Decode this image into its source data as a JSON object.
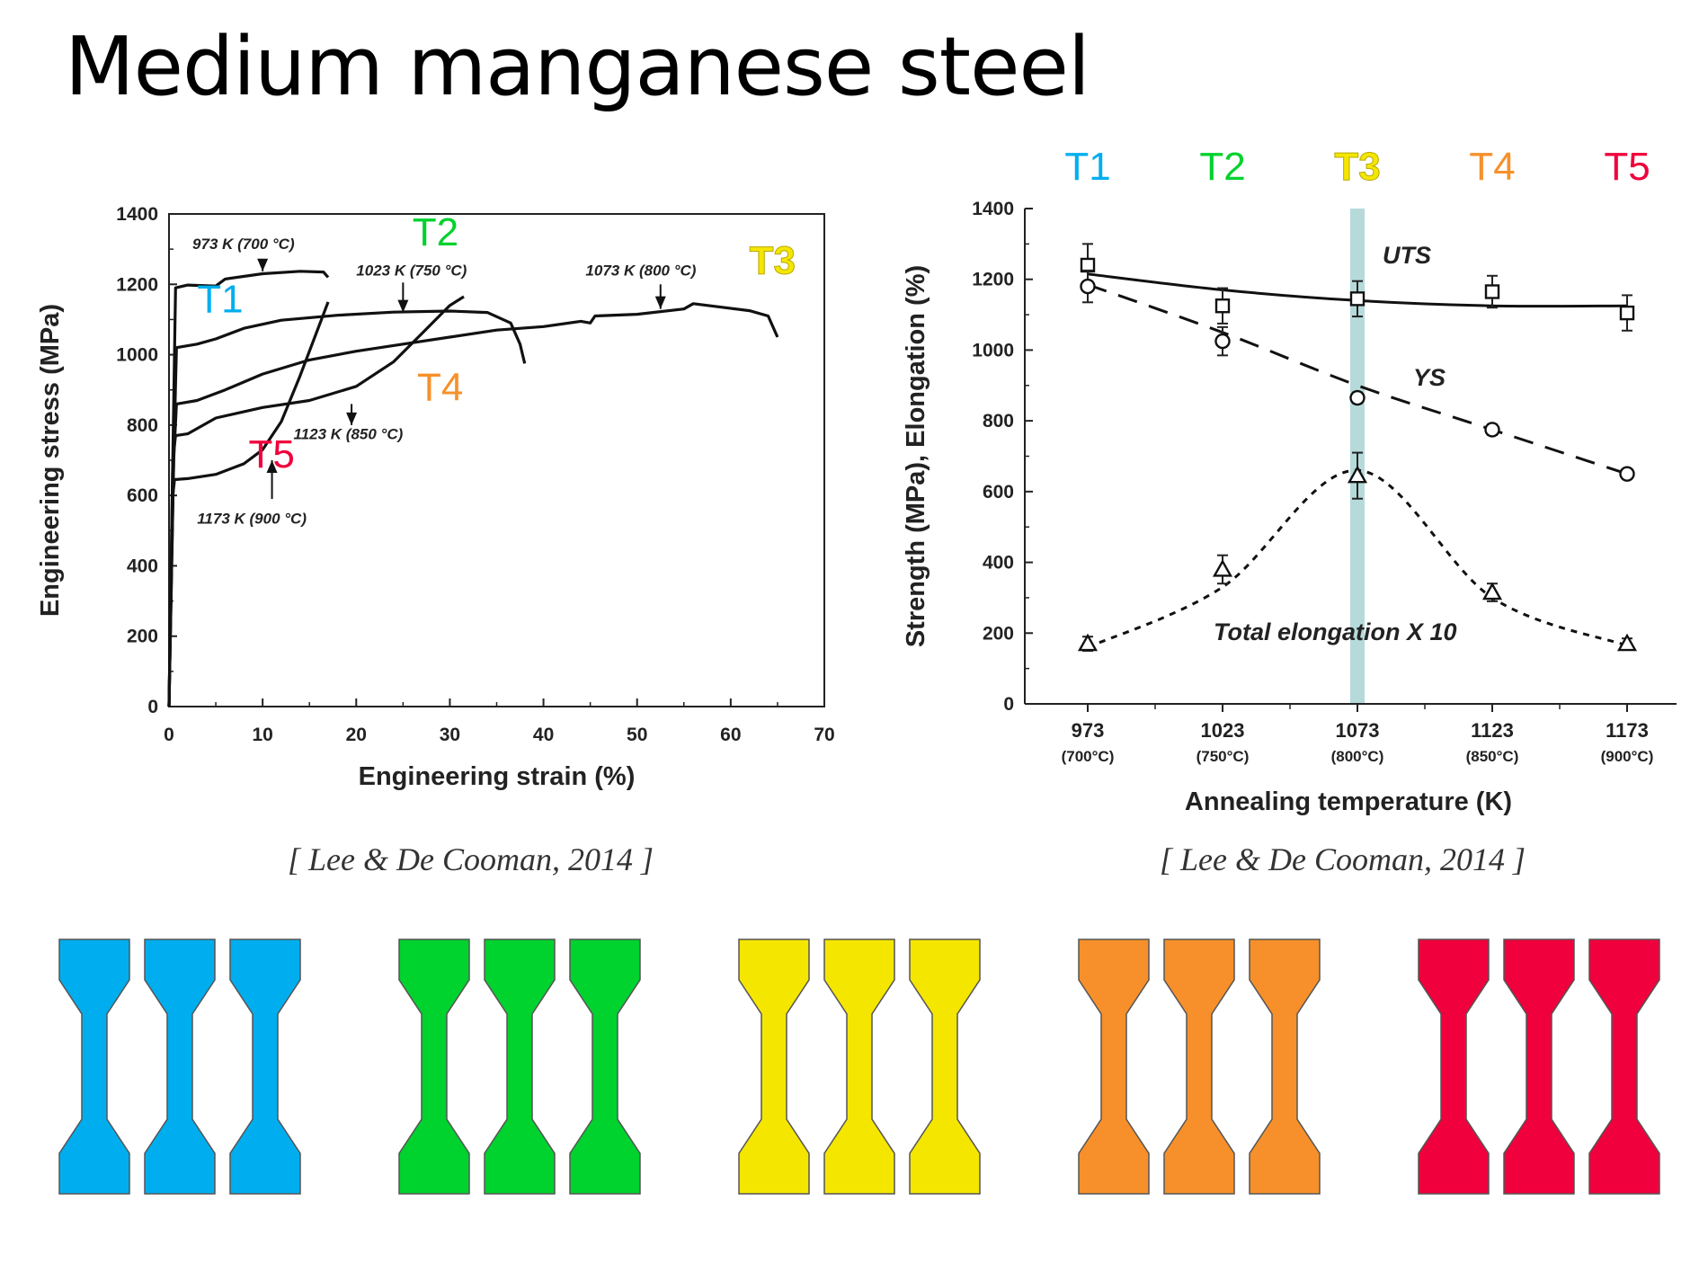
{
  "slide": {
    "title": "Medium manganese steel",
    "citation_left": "[ Lee & De Cooman, 2014 ]",
    "citation_right": "[ Lee & De Cooman, 2014 ]"
  },
  "colors": {
    "T1": "#00AEEF",
    "T2": "#00D22E",
    "T3": "#F5E600",
    "T4": "#F7902A",
    "T5": "#F0003C",
    "highlight": "#A9D3D3"
  },
  "chart_data": [
    {
      "type": "line",
      "xlabel": "Engineering strain (%)",
      "ylabel": "Engineering stress (MPa)",
      "xlim": [
        0,
        70
      ],
      "ylim": [
        0,
        1400
      ],
      "xticks": [
        0,
        10,
        20,
        30,
        40,
        50,
        60,
        70
      ],
      "yticks": [
        0,
        200,
        400,
        600,
        800,
        1000,
        1200,
        1400
      ],
      "series": [
        {
          "name": "973 K (700 °C)",
          "tag": "T1",
          "points": [
            [
              0,
              0
            ],
            [
              0.4,
              700
            ],
            [
              0.7,
              1190
            ],
            [
              2,
              1198
            ],
            [
              5,
              1195
            ],
            [
              6,
              1215
            ],
            [
              10,
              1230
            ],
            [
              14,
              1237
            ],
            [
              16.5,
              1235
            ],
            [
              17,
              1220
            ]
          ]
        },
        {
          "name": "1023 K (750 °C)",
          "tag": "T2",
          "points": [
            [
              0,
              0
            ],
            [
              0.5,
              700
            ],
            [
              0.8,
              1020
            ],
            [
              3,
              1030
            ],
            [
              5,
              1045
            ],
            [
              8,
              1075
            ],
            [
              12,
              1098
            ],
            [
              18,
              1112
            ],
            [
              24,
              1121
            ],
            [
              30,
              1124
            ],
            [
              34,
              1120
            ],
            [
              36.5,
              1090
            ],
            [
              37.5,
              1030
            ],
            [
              38,
              975
            ]
          ]
        },
        {
          "name": "1073 K (800 °C)",
          "tag": "T3",
          "points": [
            [
              0,
              0
            ],
            [
              0.5,
              700
            ],
            [
              0.8,
              860
            ],
            [
              3,
              870
            ],
            [
              6,
              900
            ],
            [
              10,
              945
            ],
            [
              15,
              985
            ],
            [
              20,
              1010
            ],
            [
              25,
              1030
            ],
            [
              30,
              1050
            ],
            [
              35,
              1070
            ],
            [
              40,
              1080
            ],
            [
              44,
              1095
            ],
            [
              45,
              1090
            ],
            [
              45.5,
              1110
            ],
            [
              50,
              1115
            ],
            [
              55,
              1130
            ],
            [
              56,
              1145
            ],
            [
              59,
              1135
            ],
            [
              62,
              1125
            ],
            [
              64,
              1110
            ],
            [
              65,
              1050
            ]
          ]
        },
        {
          "name": "1123 K (850 °C)",
          "tag": "T4",
          "points": [
            [
              0,
              0
            ],
            [
              0.4,
              700
            ],
            [
              0.7,
              770
            ],
            [
              2,
              775
            ],
            [
              5,
              820
            ],
            [
              10,
              850
            ],
            [
              15,
              870
            ],
            [
              20,
              910
            ],
            [
              24,
              980
            ],
            [
              27,
              1060
            ],
            [
              30,
              1140
            ],
            [
              31.5,
              1165
            ]
          ]
        },
        {
          "name": "1173 K (900 °C)",
          "tag": "T5",
          "points": [
            [
              0,
              0
            ],
            [
              0.4,
              600
            ],
            [
              0.6,
              645
            ],
            [
              2,
              648
            ],
            [
              5,
              660
            ],
            [
              8,
              690
            ],
            [
              10,
              730
            ],
            [
              12,
              810
            ],
            [
              14,
              940
            ],
            [
              16,
              1080
            ],
            [
              17,
              1150
            ]
          ]
        }
      ],
      "annotations": [
        {
          "text": "973 K (700 °C)",
          "x": 2.5,
          "y": 1300
        },
        {
          "text": "1023 K (750 °C)",
          "x": 20,
          "y": 1225
        },
        {
          "text": "1073 K (800 °C)",
          "x": 44.5,
          "y": 1225
        },
        {
          "text": "1123 K (850 °C)",
          "x": 13.3,
          "y": 760
        },
        {
          "text": "1173 K (900 °C)",
          "x": 3,
          "y": 520
        }
      ],
      "arrows": [
        {
          "from": [
            10,
            1250
          ],
          "to": [
            10,
            1237
          ]
        },
        {
          "from": [
            25,
            1205
          ],
          "to": [
            25,
            1120
          ]
        },
        {
          "from": [
            52.5,
            1200
          ],
          "to": [
            52.5,
            1130
          ]
        },
        {
          "from": [
            19.5,
            860
          ],
          "to": [
            19.5,
            800
          ]
        },
        {
          "from": [
            11,
            590
          ],
          "to": [
            11,
            700
          ]
        }
      ],
      "tags": [
        {
          "label": "T1",
          "x": 3,
          "y": 1120
        },
        {
          "label": "T2",
          "x": 26,
          "y": 1310
        },
        {
          "label": "T3",
          "x": 62,
          "y": 1230
        },
        {
          "label": "T4",
          "x": 26.5,
          "y": 870
        },
        {
          "label": "T5",
          "x": 8.5,
          "y": 680
        }
      ]
    },
    {
      "type": "scatter",
      "xlabel": "Annealing temperature (K)",
      "ylabel": "Strength (MPa), Elongation (%)",
      "categories": [
        "973",
        "1023",
        "1073",
        "1123",
        "1173"
      ],
      "sublabels": [
        "(700°C)",
        "(750°C)",
        "(800°C)",
        "(850°C)",
        "(900°C)"
      ],
      "top_labels": [
        "T1",
        "T2",
        "T3",
        "T4",
        "T5"
      ],
      "highlight_category": "1073",
      "ylim": [
        0,
        1400
      ],
      "yticks": [
        0,
        200,
        400,
        600,
        800,
        1000,
        1200,
        1400
      ],
      "series": [
        {
          "name": "UTS",
          "marker": "square",
          "values": [
            1240,
            1125,
            1145,
            1165,
            1105
          ],
          "errors": [
            60,
            50,
            50,
            45,
            50
          ],
          "fit": [
            1215,
            1170,
            1140,
            1125,
            1125
          ]
        },
        {
          "name": "YS",
          "marker": "circle",
          "values": [
            1180,
            1025,
            865,
            775,
            650
          ],
          "errors": [
            45,
            40,
            15,
            15,
            10
          ],
          "fit": [
            1185,
            1050,
            900,
            775,
            650
          ]
        },
        {
          "name": "Total elongation X 10",
          "marker": "triangle",
          "values": [
            170,
            380,
            645,
            315,
            170
          ],
          "errors": [
            20,
            40,
            65,
            25,
            15
          ],
          "fit": [
            160,
            330,
            660,
            300,
            165
          ]
        }
      ]
    }
  ],
  "specimens": [
    {
      "tag": "T1",
      "count": 3
    },
    {
      "tag": "T2",
      "count": 3
    },
    {
      "tag": "T3",
      "count": 3
    },
    {
      "tag": "T4",
      "count": 3
    },
    {
      "tag": "T5",
      "count": 3
    }
  ]
}
